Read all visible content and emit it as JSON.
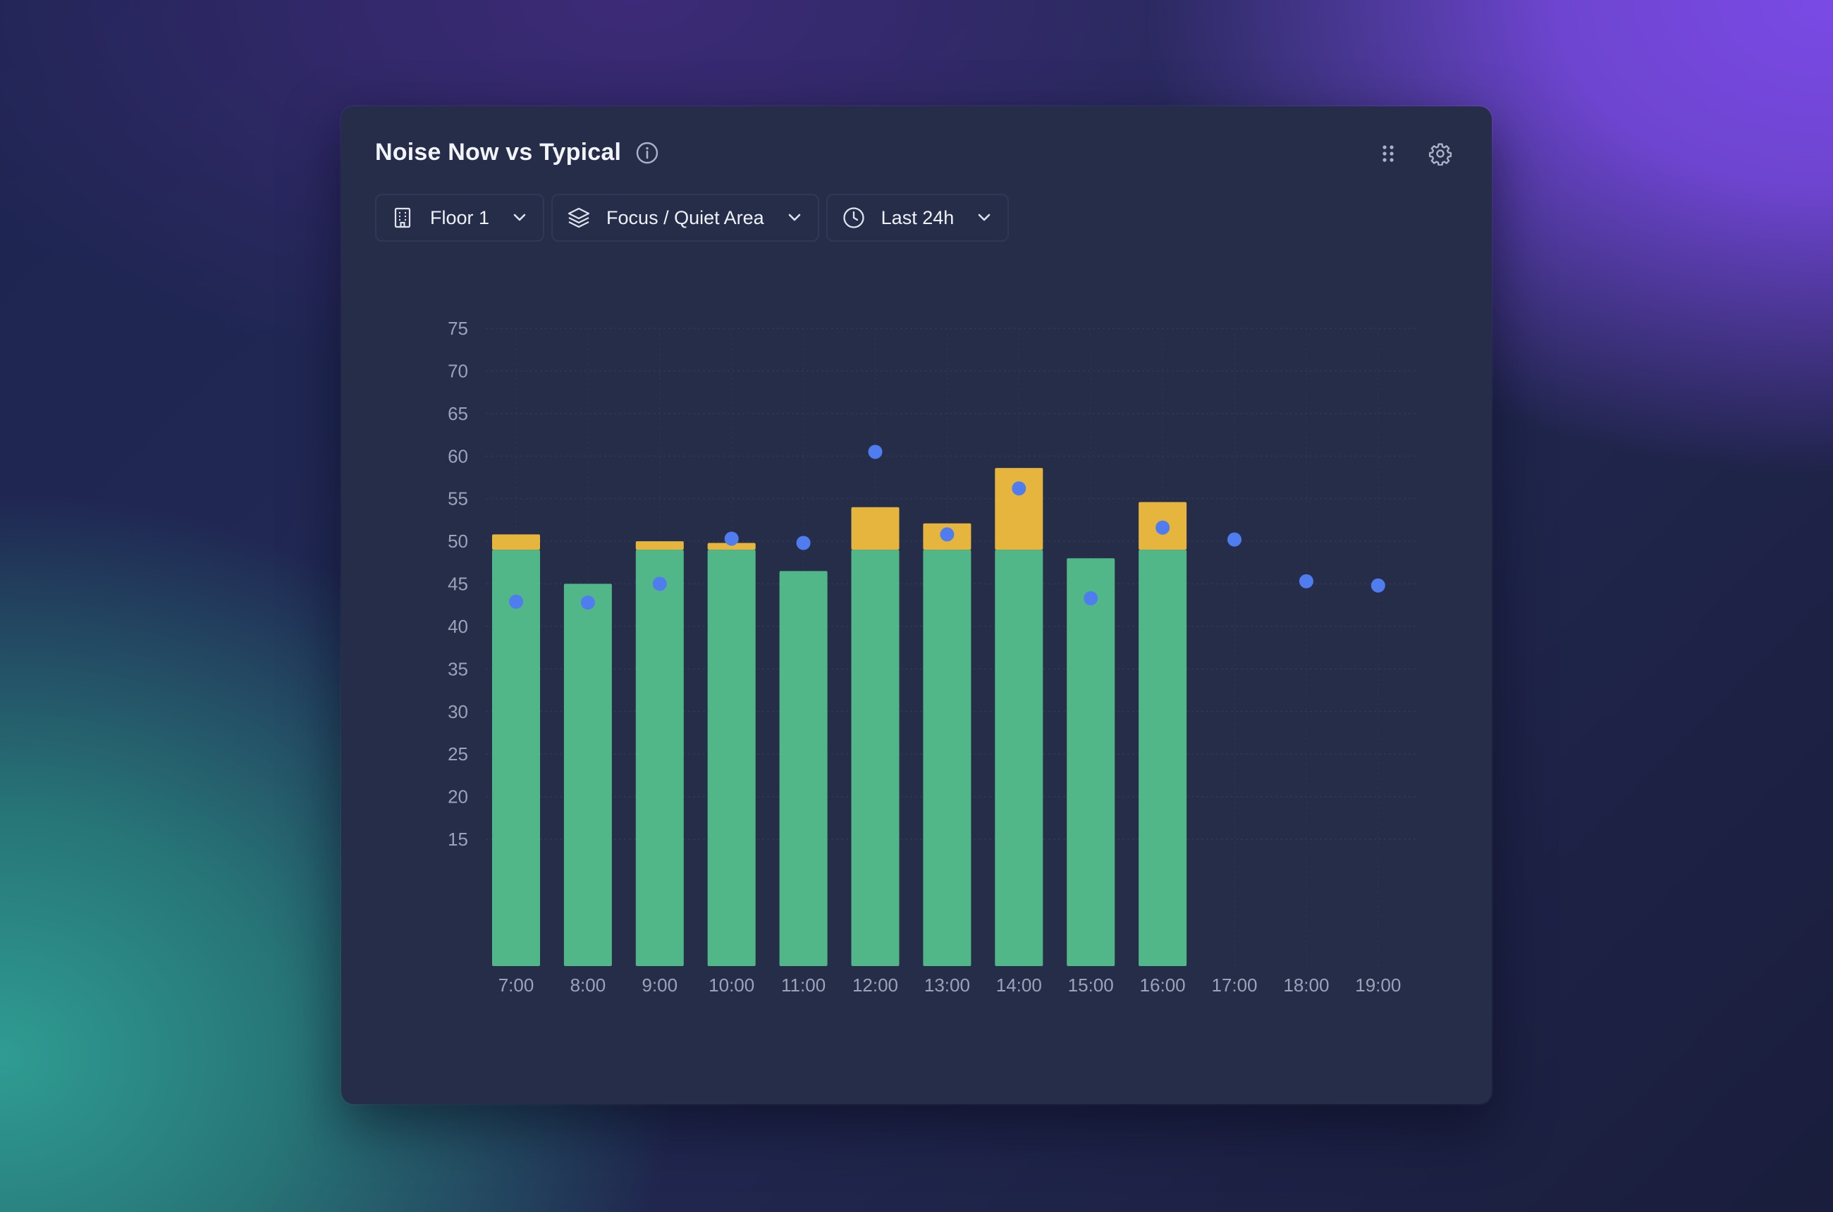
{
  "widget": {
    "title": "Noise Now vs Typical",
    "icons": {
      "info": "info-icon",
      "drag": "drag-handle-icon",
      "settings": "gear-icon"
    }
  },
  "filters": [
    {
      "icon": "building-icon",
      "label": "Floor 1"
    },
    {
      "icon": "layers-icon",
      "label": "Focus / Quiet Area"
    },
    {
      "icon": "clock-icon",
      "label": "Last 24h"
    }
  ],
  "colors": {
    "base_bar": "#52b788",
    "excess_bar": "#e5b53e",
    "typical_dot": "#4f7df0",
    "grid": "#2f3856",
    "card": "#252d49"
  },
  "chart_data": {
    "type": "bar",
    "categories": [
      "7:00",
      "8:00",
      "9:00",
      "10:00",
      "11:00",
      "12:00",
      "13:00",
      "14:00",
      "15:00",
      "16:00",
      "17:00",
      "18:00",
      "19:00"
    ],
    "y_ticks": [
      15,
      20,
      25,
      30,
      35,
      40,
      45,
      50,
      55,
      60,
      65,
      70,
      75
    ],
    "ylim": [
      0,
      75
    ],
    "grid": true,
    "stack_threshold": 49,
    "series": [
      {
        "kind": "stacked-bar",
        "values": [
          50.8,
          45,
          50,
          49.8,
          46.5,
          54,
          52.1,
          58.6,
          48,
          54.6,
          null,
          null,
          null
        ]
      },
      {
        "kind": "dot",
        "values": [
          42.9,
          42.8,
          45,
          50.3,
          49.8,
          60.5,
          50.8,
          56.2,
          43.3,
          51.6,
          50.2,
          45.3,
          44.8
        ]
      }
    ],
    "title": "Noise Now vs Typical",
    "xlabel": "",
    "ylabel": ""
  }
}
